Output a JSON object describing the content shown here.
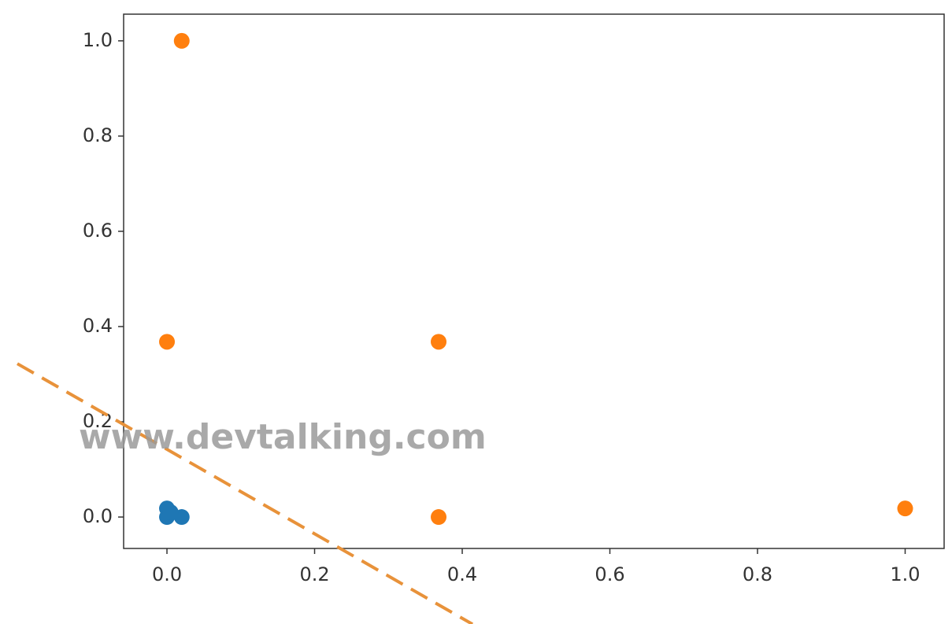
{
  "chart_data": {
    "type": "scatter",
    "annotation": "www.devtalking.com",
    "xlim": [
      -0.0587,
      1.0528
    ],
    "ylim": [
      -0.066,
      1.056
    ],
    "xticks": [
      {
        "value": 0,
        "label": "0.0"
      },
      0.2,
      0.4,
      0.6,
      0.8,
      {
        "value": 1,
        "label": "1.0"
      }
    ],
    "yticks": [
      {
        "value": 0,
        "label": "0.0"
      },
      0.2,
      0.4,
      0.6,
      0.8,
      {
        "value": 1,
        "label": "1.0"
      }
    ],
    "series": [
      {
        "color": "#1f77b4",
        "x": [
          0,
          0,
          0.02,
          0.005
        ],
        "values": [
          0.018,
          0,
          0,
          0.01
        ]
      },
      {
        "color": "#ff7f0e",
        "x": [
          0.02,
          0,
          0.368,
          0.368,
          1
        ],
        "values": [
          1,
          0.368,
          0.368,
          0,
          0.018
        ]
      },
      {
        "type": "line",
        "dashed": true,
        "color": "#e8923a",
        "x": [
          -0.2027,
          0.4139
        ],
        "values": [
          0.322,
          -0.225
        ]
      }
    ]
  }
}
